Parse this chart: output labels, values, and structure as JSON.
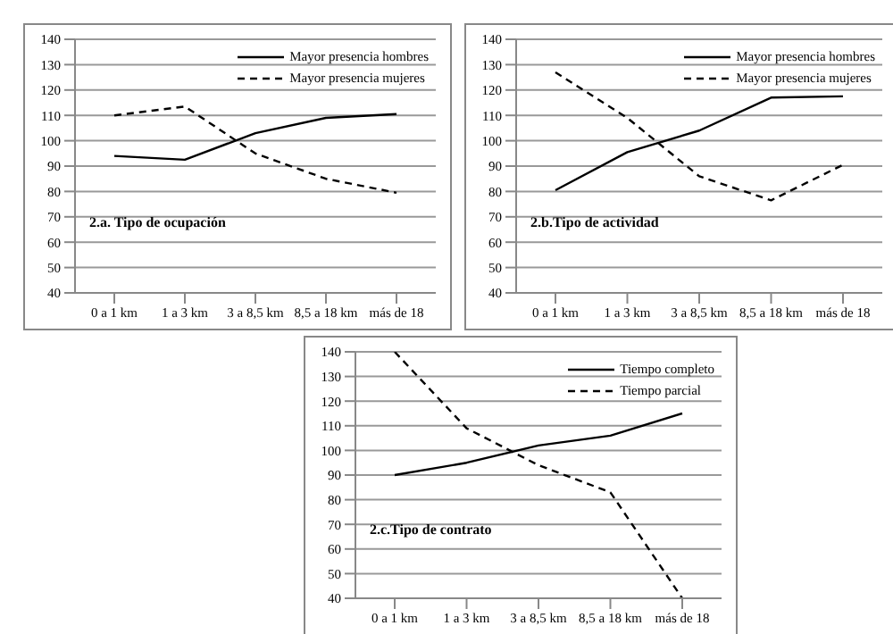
{
  "chart_data": [
    {
      "type": "line",
      "title": "2.a. Tipo de ocupación",
      "categories": [
        "0 a 1 km",
        "1 a 3 km",
        "3 a 8,5 km",
        "8,5 a 18 km",
        "más de 18"
      ],
      "series": [
        {
          "name": "Mayor presencia hombres",
          "color": "#000000",
          "line_style": "solid",
          "values": [
            94,
            92.5,
            103,
            109,
            110.5
          ]
        },
        {
          "name": "Mayor presencia mujeres",
          "color": "#000000",
          "line_style": "dashed",
          "values": [
            110,
            113.5,
            95,
            85,
            79.5
          ]
        }
      ],
      "ylim": [
        40,
        140
      ],
      "yticks": [
        40,
        50,
        60,
        70,
        80,
        90,
        100,
        110,
        120,
        130,
        140
      ],
      "grid": "y",
      "legend": "top right",
      "marker": "none"
    },
    {
      "type": "line",
      "title": "2.b.Tipo de actividad",
      "categories": [
        "0 a 1 km",
        "1 a 3 km",
        "3 a 8,5 km",
        "8,5 a 18 km",
        "más de 18"
      ],
      "series": [
        {
          "name": "Mayor presencia hombres",
          "color": "#000000",
          "line_style": "solid",
          "values": [
            80.5,
            95.5,
            104,
            117,
            117.5
          ]
        },
        {
          "name": "Mayor presencia mujeres",
          "color": "#000000",
          "line_style": "dashed",
          "values": [
            127,
            109,
            86,
            76.5,
            90.5
          ]
        }
      ],
      "ylim": [
        40,
        140
      ],
      "yticks": [
        40,
        50,
        60,
        70,
        80,
        90,
        100,
        110,
        120,
        130,
        140
      ],
      "grid": "y",
      "legend": "top right",
      "marker": "none"
    },
    {
      "type": "line",
      "title": "2.c.Tipo de contrato",
      "categories": [
        "0 a 1 km",
        "1 a 3 km",
        "3 a 8,5 km",
        "8,5 a 18 km",
        "más de 18"
      ],
      "series": [
        {
          "name": "Tiempo completo",
          "color": "#000000",
          "line_style": "solid",
          "values": [
            90,
            95,
            102,
            106,
            115
          ]
        },
        {
          "name": "Tiempo parcial",
          "color": "#000000",
          "line_style": "dashed",
          "values": [
            140,
            109,
            94,
            83,
            40
          ]
        }
      ],
      "ylim": [
        40,
        140
      ],
      "yticks": [
        40,
        50,
        60,
        70,
        80,
        90,
        100,
        110,
        120,
        130,
        140
      ],
      "grid": "y",
      "legend": "top right",
      "marker": "none"
    }
  ]
}
